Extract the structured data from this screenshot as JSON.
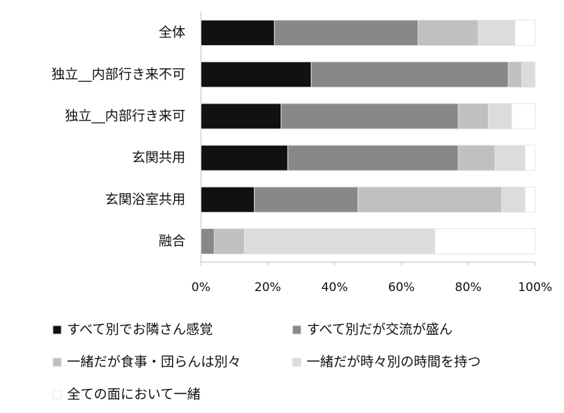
{
  "chart_data": {
    "type": "stacked-bar-horizontal",
    "categories": [
      "全体",
      "独立__内部行き来不可",
      "独立__内部行き来可",
      "玄関共用",
      "玄関浴室共用",
      "融合"
    ],
    "series": [
      {
        "name": "すべて別でお隣さん感覚",
        "color": "#111111",
        "values": [
          22,
          33,
          24,
          26,
          16,
          0
        ]
      },
      {
        "name": "すべて別だが交流が盛ん",
        "color": "#888888",
        "values": [
          43,
          59,
          53,
          51,
          31,
          4
        ]
      },
      {
        "name": "一緒だが食事・団らんは別々",
        "color": "#c0c0c0",
        "values": [
          18,
          4,
          9,
          11,
          43,
          9
        ]
      },
      {
        "name": "一緒だが時々別の時間を持つ",
        "color": "#dcdcdc",
        "values": [
          11,
          4,
          7,
          9,
          7,
          57
        ]
      },
      {
        "name": "全ての面において一緒",
        "color": "#ffffff",
        "values": [
          6,
          0,
          7,
          3,
          3,
          30
        ]
      }
    ],
    "xlim": [
      0,
      100
    ],
    "xticks": [
      {
        "value": 0,
        "label": "0%"
      },
      {
        "value": 20,
        "label": "20%"
      },
      {
        "value": 40,
        "label": "40%"
      },
      {
        "value": 60,
        "label": "60%"
      },
      {
        "value": 80,
        "label": "80%"
      },
      {
        "value": 100,
        "label": "100%"
      }
    ]
  }
}
